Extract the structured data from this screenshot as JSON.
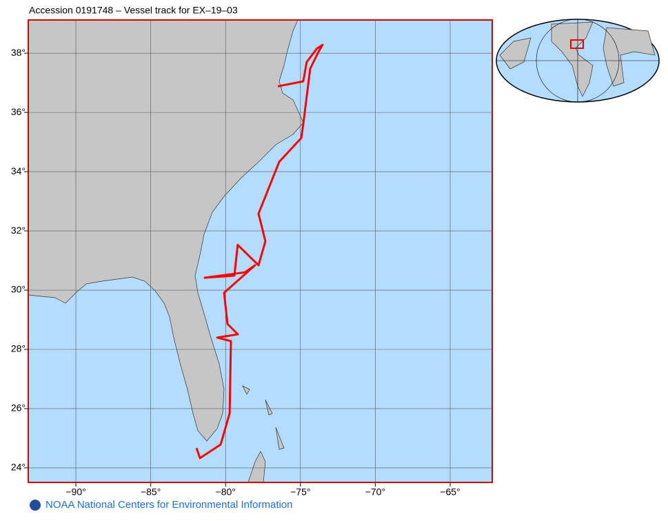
{
  "title": "Accession 0191748 – Vessel track for EX–19–03",
  "map": {
    "xlim": [
      -93.18,
      -62.19
    ],
    "ylim": [
      23.51,
      39.12
    ],
    "xticks": [
      {
        "value": -90,
        "label": "−90°"
      },
      {
        "value": -85,
        "label": "−85°"
      },
      {
        "value": -80,
        "label": "−80°"
      },
      {
        "value": -75,
        "label": "−75°"
      },
      {
        "value": -70,
        "label": "−70°"
      },
      {
        "value": -65,
        "label": "−65°"
      }
    ],
    "yticks": [
      {
        "value": 24,
        "label": "24°"
      },
      {
        "value": 26,
        "label": "26°"
      },
      {
        "value": 28,
        "label": "28°"
      },
      {
        "value": 30,
        "label": "30°"
      },
      {
        "value": 32,
        "label": "32°"
      },
      {
        "value": 34,
        "label": "34°"
      },
      {
        "value": 36,
        "label": "36°"
      },
      {
        "value": 38,
        "label": "38°"
      }
    ],
    "track": {
      "color": "#ff0000",
      "lon": [
        -76.51,
        -74.81,
        -74.58,
        -73.89,
        -73.52,
        -73.79,
        -74.35,
        -74.81,
        -74.94,
        -76.42,
        -77.8,
        -77.57,
        -77.34,
        -77.8,
        -79.19,
        -79.41,
        -81.39,
        -78.72,
        -78.03,
        -80.1,
        -79.87,
        -79.18,
        -80.56,
        -79.64,
        -79.73,
        -80.33,
        -81.71,
        -81.94
      ],
      "lat": [
        36.88,
        37.05,
        37.7,
        38.16,
        38.28,
        38.05,
        37.47,
        35.6,
        35.14,
        34.33,
        32.58,
        32.12,
        31.65,
        30.84,
        31.53,
        30.49,
        30.42,
        30.6,
        30.84,
        29.91,
        28.86,
        28.51,
        28.4,
        28.28,
        25.84,
        24.79,
        24.33,
        24.67
      ]
    }
  },
  "footer": "NOAA National Centers for Environmental Information"
}
